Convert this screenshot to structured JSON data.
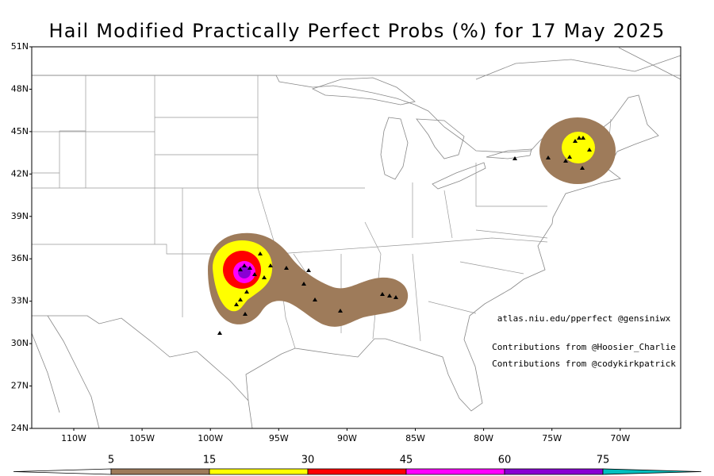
{
  "title": "Hail Modified Practically Perfect Probs (%) for 17 May 2025",
  "latitude_labels": [
    "51N",
    "48N",
    "45N",
    "42N",
    "39N",
    "36N",
    "33N",
    "30N",
    "27N",
    "24N"
  ],
  "longitude_labels": [
    "110W",
    "105W",
    "100W",
    "95W",
    "90W",
    "85W",
    "80W",
    "75W",
    "70W"
  ],
  "annotations": [
    "atlas.niu.edu/pperfect @gensiniwx",
    "Contributions from @Hoosier_Charlie",
    "Contributions from @codykirkpatrick"
  ],
  "colorbar": {
    "labels": [
      5,
      15,
      30,
      45,
      60,
      75
    ],
    "colors": [
      "#ffffff",
      "#9e7b5a",
      "#ffff00",
      "#ff0000",
      "#ff00ff",
      "#8a00d4",
      "#00c0c0"
    ]
  }
}
